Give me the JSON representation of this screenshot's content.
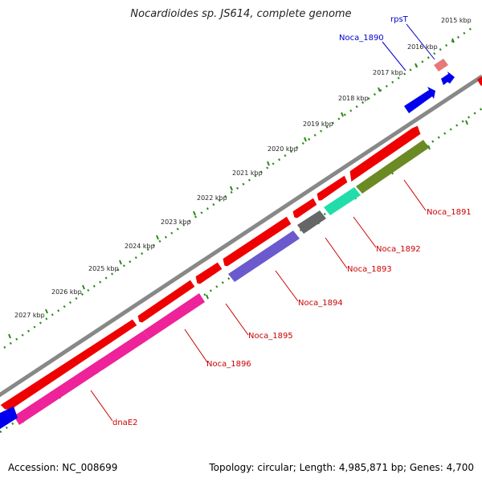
{
  "title": "Nocardioides sp. JS614, complete genome",
  "footer": {
    "accession": "Accession: NC_008699",
    "summary": "Topology: circular; Length: 4,985,871 bp; Genes: 4,700"
  },
  "colors": {
    "backbone": "#888888",
    "tick": "#2a8a1a",
    "forward_label": "#0000cc",
    "reverse_label": "#cc0000",
    "leader": "#cc0000"
  },
  "kbp_labels": [
    "2015 kbp",
    "2016 kbp",
    "2017 kbp",
    "2018 kbp",
    "2019 kbp",
    "2020 kbp",
    "2021 kbp",
    "2022 kbp",
    "2023 kbp",
    "2024 kbp",
    "2025 kbp",
    "2026 kbp",
    "2027 kbp"
  ],
  "gene_labels": [
    {
      "name": "rpsT",
      "strand": "forward"
    },
    {
      "name": "Noca_1890",
      "strand": "forward"
    },
    {
      "name": "Noca_1891",
      "strand": "reverse"
    },
    {
      "name": "Noca_1892",
      "strand": "reverse"
    },
    {
      "name": "Noca_1893",
      "strand": "reverse"
    },
    {
      "name": "Noca_1894",
      "strand": "reverse"
    },
    {
      "name": "Noca_1895",
      "strand": "reverse"
    },
    {
      "name": "Noca_1896",
      "strand": "reverse"
    },
    {
      "name": "dnaE2",
      "strand": "reverse"
    }
  ],
  "features": [
    {
      "id": "rpsT-arrow",
      "color": "#e87878"
    },
    {
      "id": "noca1890-arrow",
      "color": "#0000ee"
    },
    {
      "id": "offscreen-red-arrow",
      "color": "#ee0000"
    },
    {
      "id": "orf-track-arrows",
      "color": "#ee0000"
    },
    {
      "id": "noca1891-arrow",
      "color": "#6b8a23"
    },
    {
      "id": "noca1892-arrow",
      "color": "#22ddaa"
    },
    {
      "id": "noca1893-arrow",
      "color": "#666666"
    },
    {
      "id": "noca1894-arrow",
      "color": "#6a5acd"
    },
    {
      "id": "noca1895-arrow",
      "color": "#ee2299"
    },
    {
      "id": "noca1896-arrow",
      "color": "#ee2299"
    },
    {
      "id": "dnae2-arrow",
      "color": "#0000ee"
    }
  ]
}
